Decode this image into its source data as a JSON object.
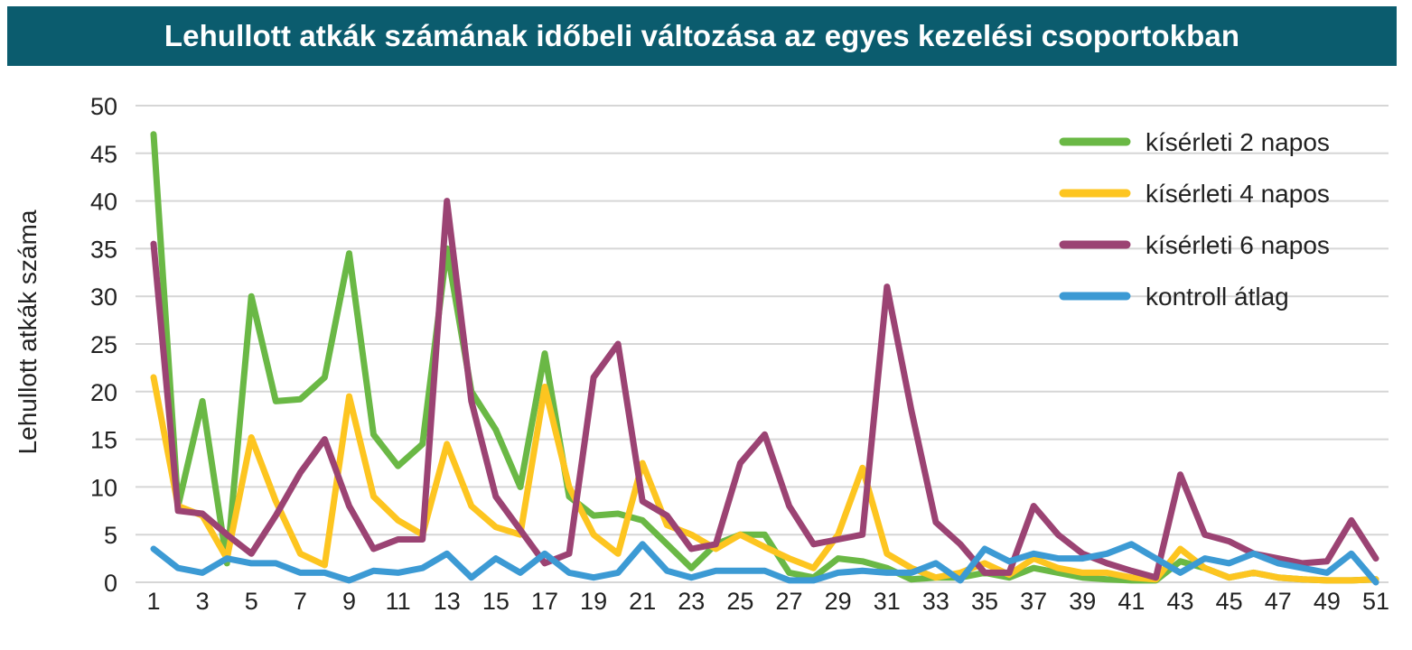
{
  "chart_data": {
    "type": "line",
    "title": "Lehullott atkák számának időbeli változása az egyes kezelési csoportokban",
    "xlabel": "",
    "ylabel": "Lehullott atkák száma",
    "x": [
      1,
      2,
      3,
      4,
      5,
      6,
      7,
      8,
      9,
      10,
      11,
      12,
      13,
      14,
      15,
      16,
      17,
      18,
      19,
      20,
      21,
      22,
      23,
      24,
      25,
      26,
      27,
      28,
      29,
      30,
      31,
      32,
      33,
      34,
      35,
      36,
      37,
      38,
      39,
      40,
      41,
      42,
      43,
      44,
      45,
      46,
      47,
      48,
      49,
      50,
      51
    ],
    "x_tick_labels": [
      "1",
      "3",
      "5",
      "7",
      "9",
      "11",
      "13",
      "15",
      "17",
      "19",
      "21",
      "23",
      "25",
      "27",
      "29",
      "31",
      "33",
      "35",
      "37",
      "39",
      "41",
      "43",
      "45",
      "47",
      "49",
      "51"
    ],
    "y_tick_labels": [
      "0",
      "5",
      "10",
      "15",
      "20",
      "25",
      "30",
      "35",
      "40",
      "45",
      "50"
    ],
    "ylim": [
      0,
      50
    ],
    "grid": true,
    "legend_position": "top-right",
    "series": [
      {
        "name": "kísérleti 2 napos",
        "color": "#6ab845",
        "values": [
          47,
          8,
          19,
          2,
          30,
          19,
          19.2,
          21.5,
          34.5,
          15.5,
          12.2,
          14.5,
          35,
          20,
          16,
          10,
          24,
          9,
          7,
          7.2,
          6.5,
          4,
          1.5,
          4,
          5,
          5,
          1,
          0.5,
          2.5,
          2.2,
          1.5,
          0.3,
          0.5,
          0.5,
          1,
          0.5,
          1.5,
          1,
          0.5,
          0.3,
          0.2,
          0.2,
          2.2,
          1.5,
          0.5,
          1,
          0.5,
          0.3,
          0.2,
          0.2,
          0.3
        ]
      },
      {
        "name": "kísérleti 4 napos",
        "color": "#fdc520",
        "values": [
          21.5,
          8,
          7,
          2.5,
          15.2,
          8.5,
          3,
          1.8,
          19.5,
          9,
          6.5,
          5,
          14.5,
          8,
          5.8,
          5,
          20.5,
          10,
          5,
          3,
          12.5,
          6,
          5,
          3.5,
          5,
          3.7,
          2.5,
          1.5,
          5,
          12,
          3,
          1.5,
          0.5,
          1,
          2,
          0.8,
          2.5,
          1.5,
          1,
          1,
          0.5,
          0.3,
          3.5,
          1.5,
          0.5,
          1,
          0.5,
          0.3,
          0.2,
          0.2,
          0.3
        ]
      },
      {
        "name": "kísérleti 6 napos",
        "color": "#9b4373",
        "values": [
          35.5,
          7.5,
          7.2,
          5,
          3,
          7,
          11.5,
          15,
          8,
          3.5,
          4.5,
          4.5,
          40,
          19,
          9,
          5.5,
          2,
          3,
          21.5,
          25,
          8.5,
          7,
          3.5,
          4,
          12.5,
          15.5,
          8,
          4,
          4.5,
          5,
          31,
          18,
          6.3,
          4,
          1,
          1,
          8,
          5,
          3,
          2,
          1.2,
          0.5,
          11.3,
          5,
          4.3,
          3,
          2.5,
          2,
          2.2,
          6.5,
          2.5
        ]
      },
      {
        "name": "kontroll átlag",
        "color": "#3c9ad4",
        "values": [
          3.5,
          1.5,
          1,
          2.5,
          2,
          2,
          1,
          1,
          0.2,
          1.2,
          1,
          1.5,
          3,
          0.5,
          2.5,
          1,
          3,
          1,
          0.5,
          1,
          4,
          1.2,
          0.5,
          1.2,
          1.2,
          1.2,
          0.2,
          0.2,
          1,
          1.2,
          1,
          1,
          2,
          0.2,
          3.5,
          2.2,
          3,
          2.5,
          2.5,
          3,
          4,
          2.5,
          1,
          2.5,
          2,
          3,
          2,
          1.5,
          1,
          3,
          0
        ]
      }
    ]
  }
}
